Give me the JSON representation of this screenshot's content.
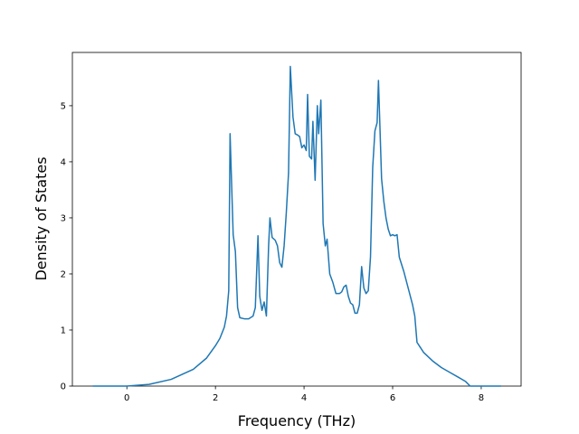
{
  "chart_data": {
    "type": "line",
    "xlabel": "Frequency (THz)",
    "ylabel": "Density of States",
    "x": [
      -0.77,
      0,
      0.5,
      1.0,
      1.5,
      1.8,
      2.0,
      2.1,
      2.2,
      2.25,
      2.3,
      2.33,
      2.4,
      2.45,
      2.5,
      2.55,
      2.65,
      2.75,
      2.85,
      2.9,
      2.96,
      3.0,
      3.05,
      3.1,
      3.15,
      3.2,
      3.23,
      3.28,
      3.35,
      3.4,
      3.45,
      3.5,
      3.55,
      3.6,
      3.65,
      3.69,
      3.75,
      3.8,
      3.85,
      3.9,
      3.95,
      4.0,
      4.05,
      4.08,
      4.12,
      4.17,
      4.2,
      4.25,
      4.3,
      4.33,
      4.38,
      4.43,
      4.48,
      4.52,
      4.58,
      4.65,
      4.72,
      4.8,
      4.85,
      4.9,
      4.95,
      5.0,
      5.05,
      5.1,
      5.15,
      5.2,
      5.25,
      5.3,
      5.35,
      5.4,
      5.45,
      5.5,
      5.55,
      5.6,
      5.65,
      5.68,
      5.75,
      5.8,
      5.85,
      5.9,
      5.95,
      6.0,
      6.05,
      6.1,
      6.15,
      6.25,
      6.35,
      6.45,
      6.5,
      6.55,
      6.7,
      6.9,
      7.1,
      7.3,
      7.5,
      7.65,
      7.75,
      8.45
    ],
    "series": [
      {
        "color": "#1f77b4",
        "values": [
          0,
          0,
          0.03,
          0.12,
          0.3,
          0.5,
          0.72,
          0.85,
          1.05,
          1.25,
          1.7,
          4.5,
          2.7,
          2.4,
          1.4,
          1.22,
          1.2,
          1.2,
          1.25,
          1.4,
          2.68,
          1.6,
          1.35,
          1.5,
          1.25,
          2.5,
          3.0,
          2.65,
          2.6,
          2.5,
          2.2,
          2.12,
          2.5,
          3.1,
          3.8,
          5.7,
          4.8,
          4.5,
          4.48,
          4.45,
          4.25,
          4.3,
          4.2,
          5.2,
          4.1,
          4.05,
          4.72,
          3.67,
          5.0,
          4.5,
          5.1,
          2.9,
          2.5,
          2.62,
          2.0,
          1.85,
          1.65,
          1.65,
          1.68,
          1.77,
          1.8,
          1.6,
          1.48,
          1.45,
          1.3,
          1.3,
          1.45,
          2.13,
          1.75,
          1.65,
          1.7,
          2.3,
          3.9,
          4.55,
          4.7,
          5.45,
          3.7,
          3.3,
          3.0,
          2.8,
          2.68,
          2.7,
          2.68,
          2.7,
          2.3,
          2.05,
          1.75,
          1.45,
          1.25,
          0.78,
          0.6,
          0.45,
          0.33,
          0.24,
          0.15,
          0.08,
          0,
          0
        ]
      }
    ],
    "xlim": [
      -1.23,
      8.9
    ],
    "ylim": [
      0,
      5.95
    ],
    "xticks": [
      0,
      2,
      4,
      6,
      8
    ],
    "yticks": [
      0,
      1,
      2,
      3,
      4,
      5
    ]
  }
}
